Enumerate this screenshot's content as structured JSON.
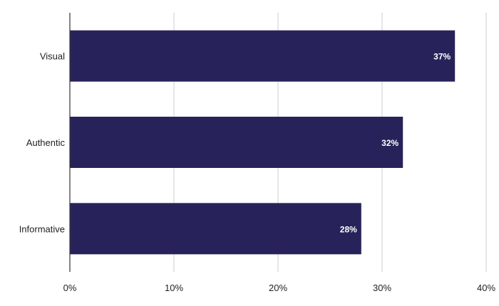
{
  "chart_data": {
    "type": "bar",
    "orientation": "horizontal",
    "categories": [
      "Visual",
      "Authentic",
      "Informative"
    ],
    "values": [
      37,
      32,
      28
    ],
    "value_labels": [
      "37%",
      "32%",
      "28%"
    ],
    "xlim": [
      0,
      40
    ],
    "x_ticks": [
      0,
      10,
      20,
      30,
      40
    ],
    "x_tick_labels": [
      "0%",
      "10%",
      "20%",
      "30%",
      "40%"
    ],
    "grid": true,
    "bar_color": "#27235a",
    "grid_color": "#cccccc",
    "axis_color": "#333333",
    "label_color": "#ffffff"
  }
}
